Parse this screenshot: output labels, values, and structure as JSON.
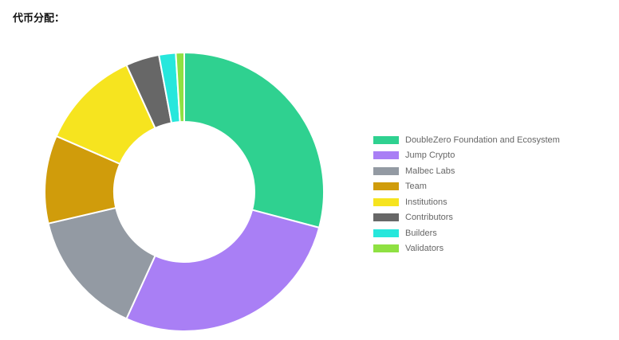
{
  "title": "代币分配：",
  "chart_data": {
    "type": "doughnut",
    "title": "",
    "legend_position": "right",
    "series": [
      {
        "name": "DoubleZero Foundation and Ecosystem",
        "value": 30,
        "color": "#2fd190"
      },
      {
        "name": "Jump Crypto",
        "value": 28.5,
        "color": "#a97ff5"
      },
      {
        "name": "Malbec Labs",
        "value": 15,
        "color": "#939aa3"
      },
      {
        "name": "Team",
        "value": 10.5,
        "color": "#d09c0b"
      },
      {
        "name": "Institutions",
        "value": 12,
        "color": "#f6e41f"
      },
      {
        "name": "Contributors",
        "value": 4,
        "color": "#676767"
      },
      {
        "name": "Builders",
        "value": 2,
        "color": "#27e7dc"
      },
      {
        "name": "Validators",
        "value": 1,
        "color": "#8fe142"
      }
    ]
  }
}
